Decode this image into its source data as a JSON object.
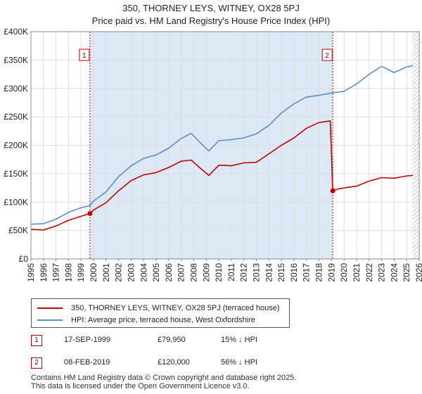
{
  "title_line1": "350, THORNEY LEYS, WITNEY, OX28 5PJ",
  "title_line2": "Price paid vs. HM Land Registry's House Price Index (HPI)",
  "colors": {
    "property": "#c00000",
    "hpi": "#5b8ec9",
    "shade": "#dde8f7",
    "marker": "#c00000"
  },
  "chart_data": {
    "type": "line",
    "title": "Price paid vs. HM Land Registry's House Price Index (HPI)",
    "xlim": [
      1995,
      2026
    ],
    "ylim": [
      0,
      400000
    ],
    "x_ticks": [
      1995,
      1996,
      1997,
      1998,
      1999,
      2000,
      2001,
      2002,
      2003,
      2004,
      2005,
      2006,
      2007,
      2008,
      2009,
      2010,
      2011,
      2012,
      2013,
      2014,
      2015,
      2016,
      2017,
      2018,
      2019,
      2020,
      2021,
      2022,
      2023,
      2024,
      2025,
      2026
    ],
    "y_ticks": [
      0,
      50000,
      100000,
      150000,
      200000,
      250000,
      300000,
      350000,
      400000
    ],
    "y_tick_labels": [
      "£0",
      "£50K",
      "£100K",
      "£150K",
      "£200K",
      "£250K",
      "£300K",
      "£350K",
      "£400K"
    ],
    "shaded_span": [
      1999.71,
      2019.1
    ],
    "future_hatch_from": 2025.5,
    "series": [
      {
        "name": "350, THORNEY LEYS, WITNEY, OX28 5PJ (terraced house)",
        "color": "#c00000",
        "x": [
          1995,
          1996,
          1997,
          1998,
          1999,
          1999.71,
          2000,
          2001,
          2002,
          2003,
          2004,
          2005,
          2006,
          2007,
          2007.8,
          2008.5,
          2009.2,
          2010,
          2011,
          2012,
          2013,
          2014,
          2015,
          2016,
          2017,
          2018,
          2018.9,
          2019.1,
          2019.5,
          2020,
          2021,
          2022,
          2023,
          2024,
          2025,
          2025.5
        ],
        "y": [
          52000,
          51000,
          58000,
          68000,
          75000,
          79950,
          86000,
          99000,
          120000,
          138000,
          148000,
          152000,
          161000,
          172000,
          174000,
          160000,
          147000,
          165000,
          164000,
          169000,
          170000,
          185000,
          200000,
          213000,
          230000,
          240000,
          243000,
          120000,
          123000,
          125000,
          128000,
          137000,
          143000,
          142000,
          146000,
          147000
        ]
      },
      {
        "name": "HPI: Average price, terraced house, West Oxfordshire",
        "color": "#5b8ec9",
        "x": [
          1995,
          1996,
          1997,
          1998,
          1999,
          1999.71,
          2000,
          2001,
          2002,
          2003,
          2004,
          2005,
          2006,
          2007,
          2007.8,
          2008.5,
          2009.2,
          2010,
          2011,
          2012,
          2013,
          2014,
          2015,
          2016,
          2017,
          2018,
          2019,
          2020,
          2021,
          2022,
          2023,
          2024,
          2025,
          2025.5
        ],
        "y": [
          61000,
          62000,
          70000,
          82000,
          90000,
          94000,
          102000,
          118000,
          145000,
          164000,
          177000,
          183000,
          195000,
          212000,
          221000,
          205000,
          190000,
          208000,
          210000,
          213000,
          220000,
          235000,
          257000,
          273000,
          285000,
          288000,
          292000,
          295000,
          308000,
          325000,
          339000,
          328000,
          338000,
          340000
        ]
      }
    ],
    "annotations": [
      {
        "label": "1",
        "x": 1999.71,
        "y": 79950
      },
      {
        "label": "2",
        "x": 2019.1,
        "y": 120000
      }
    ]
  },
  "legend": {
    "property_label": "350, THORNEY LEYS, WITNEY, OX28 5PJ (terraced house)",
    "hpi_label": "HPI: Average price, terraced house, West Oxfordshire"
  },
  "transactions": [
    {
      "num": "1",
      "date": "17-SEP-1999",
      "price": "£79,950",
      "hpi_diff": "15% ↓ HPI"
    },
    {
      "num": "2",
      "date": "08-FEB-2019",
      "price": "£120,000",
      "hpi_diff": "56% ↓ HPI"
    }
  ],
  "footer": {
    "line1": "Contains HM Land Registry data © Crown copyright and database right 2025.",
    "line2": "This data is licensed under the Open Government Licence v3.0."
  }
}
